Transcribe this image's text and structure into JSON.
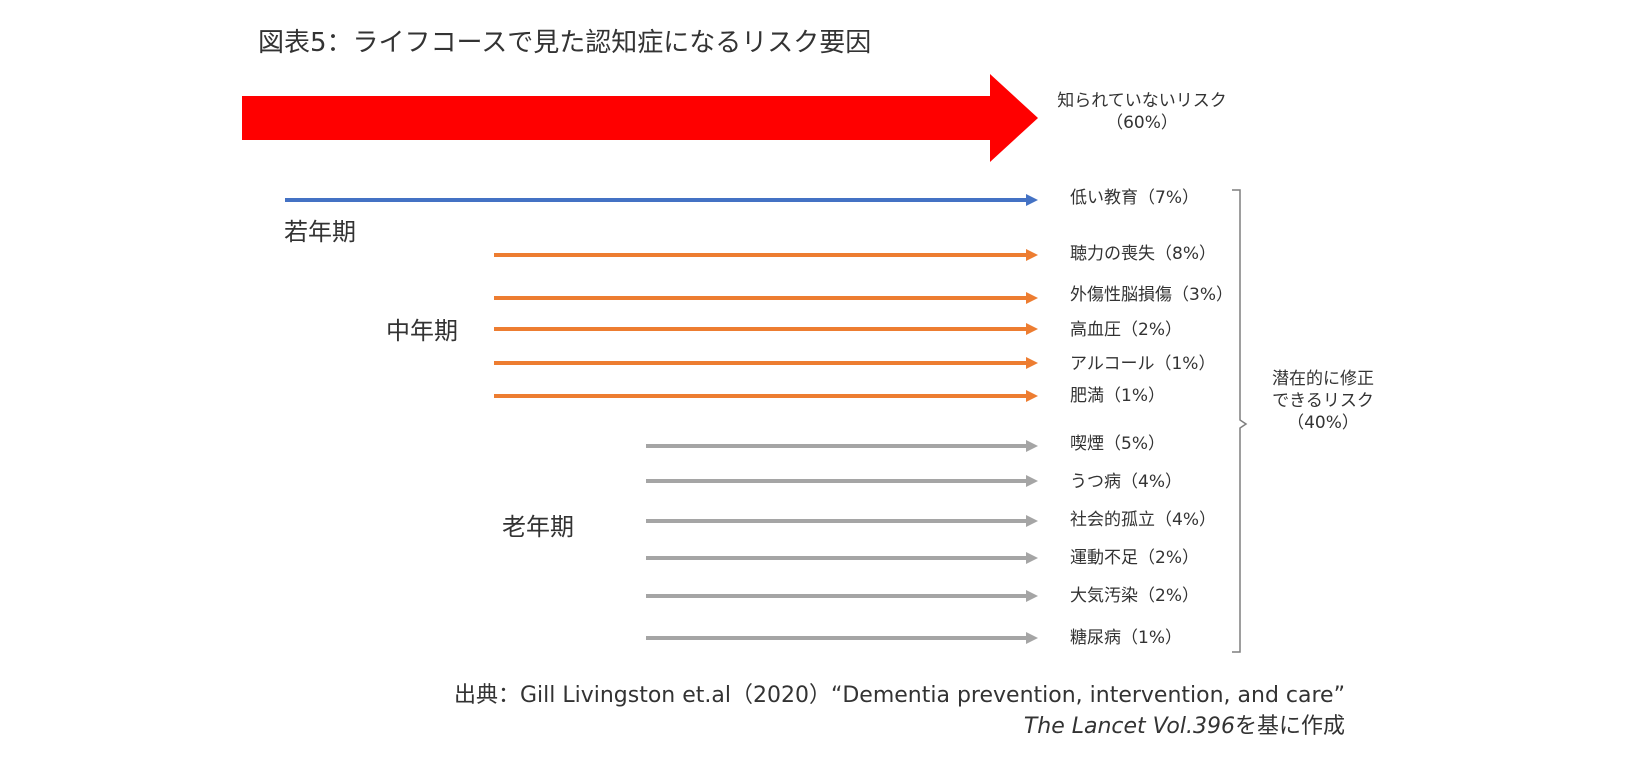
{
  "title": "図表5：ライフコースで見た認知症になるリスク要因",
  "unknown_risk": {
    "label": "知られていないリスク",
    "share": "（60%）"
  },
  "stages": [
    {
      "label": "若年期",
      "color": "#4472c4"
    },
    {
      "label": "中年期",
      "color": "#ed7d31"
    },
    {
      "label": "老年期",
      "color": "#a5a5a5"
    }
  ],
  "risks": [
    {
      "label": "低い教育（7%）",
      "stage": 0
    },
    {
      "label": "聴力の喪失（8%）",
      "stage": 1
    },
    {
      "label": "外傷性脳損傷（3%）",
      "stage": 1
    },
    {
      "label": "高血圧（2%）",
      "stage": 1
    },
    {
      "label": "アルコール（1%）",
      "stage": 1
    },
    {
      "label": "肥満（1%）",
      "stage": 1
    },
    {
      "label": "喫煙（5%）",
      "stage": 2
    },
    {
      "label": "うつ病（4%）",
      "stage": 2
    },
    {
      "label": "社会的孤立（4%）",
      "stage": 2
    },
    {
      "label": "運動不足（2%）",
      "stage": 2
    },
    {
      "label": "大気汚染（2%）",
      "stage": 2
    },
    {
      "label": "糖尿病（1%）",
      "stage": 2
    }
  ],
  "modifiable": {
    "line1": "潜在的に修正",
    "line2": "できるリスク",
    "share": "（40%）"
  },
  "source": {
    "line1": "出典：Gill Livingston et.al（2020）“Dementia prevention, intervention, and care”",
    "journal": "The Lancet Vol.396",
    "suffix": "を基に作成"
  },
  "colors": {
    "unknown_arrow": "#ff0000",
    "bracket": "#7f7f7f",
    "text": "#333333"
  }
}
